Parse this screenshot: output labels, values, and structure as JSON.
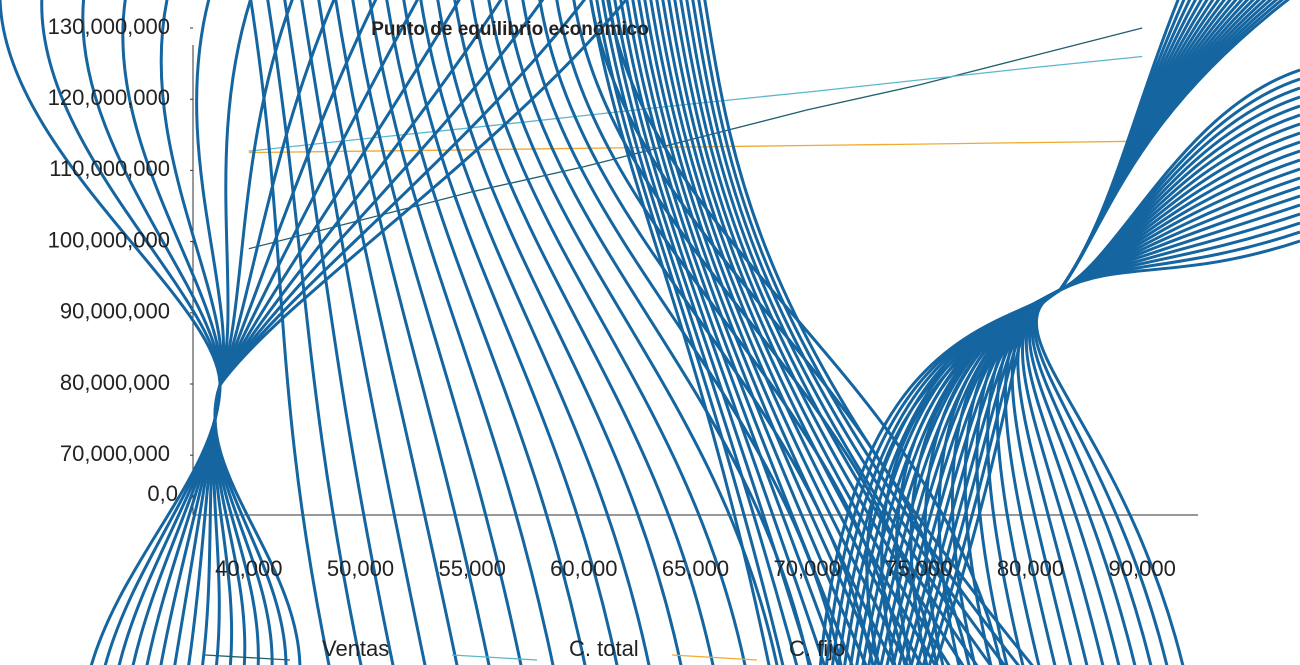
{
  "chart_data": {
    "type": "line",
    "title": "Punto de equilibrio económico",
    "categories": [
      "40,000",
      "50,000",
      "55,000",
      "60,000",
      "65,000",
      "70,000",
      "75,000",
      "80,000",
      "90,000"
    ],
    "series": [
      {
        "name": "Ventas",
        "color": "#1f5f6e",
        "values": [
          99000000,
          103000000,
          107000000,
          110500000,
          114500000,
          118500000,
          122000000,
          126000000,
          130000000
        ]
      },
      {
        "name": "C. total",
        "color": "#5ab8cc",
        "values": [
          112700000,
          114400000,
          116000000,
          117700000,
          119400000,
          121000000,
          122700000,
          124400000,
          126000000
        ]
      },
      {
        "name": "C. fijo",
        "color": "#f2aa2e",
        "values": [
          112500000,
          112700000,
          112900000,
          113100000,
          113300000,
          113500000,
          113700000,
          113900000,
          114100000
        ]
      }
    ],
    "ylim": [
      61600000,
      130000000
    ],
    "yticks": [
      {
        "value": 70000000,
        "label": "70,000,000"
      },
      {
        "value": 80000000,
        "label": "80,000,000"
      },
      {
        "value": 90000000,
        "label": "90,000,000"
      },
      {
        "value": 100000000,
        "label": "100,000,000"
      },
      {
        "value": 110000000,
        "label": "110,000,000"
      },
      {
        "value": 120000000,
        "label": "120,000,000"
      },
      {
        "value": 130000000,
        "label": "130,000,000"
      }
    ],
    "origin_label": "0,0",
    "grid": false
  }
}
